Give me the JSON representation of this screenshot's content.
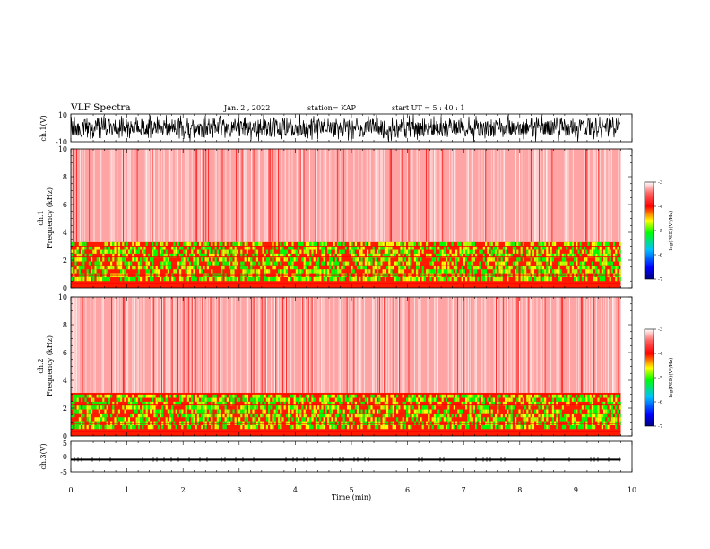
{
  "header": {
    "title": "VLF Spectra",
    "date": "Jan. 2 , 2022",
    "station": "station= KAP",
    "start": "start  UT =   5 : 40 : 1"
  },
  "chart_data": [
    {
      "type": "line",
      "panel": "ch1-waveform",
      "ylabel": "ch.1(V)",
      "ylim": [
        -10,
        10
      ],
      "yticks": [
        "10",
        "-10"
      ],
      "xlim": [
        0,
        10
      ],
      "x_extent_min": 9.8,
      "series": [
        {
          "color": "#000000"
        }
      ]
    },
    {
      "type": "heatmap",
      "panel": "ch1-spectrogram",
      "ylabel": [
        "ch.1",
        "Frequency (kHz)"
      ],
      "ylim": [
        0,
        10
      ],
      "yticks": [
        "0",
        "2",
        "4",
        "6",
        "8",
        "10"
      ],
      "xlim": [
        0,
        10
      ],
      "x_extent_min": 9.8,
      "band_top_khz": 3.3,
      "colorbar": {
        "label": "log(PSD)(V²/Hz)",
        "range": [
          -7,
          -3
        ],
        "ticks": [
          "-3",
          "-4",
          "-5",
          "-6",
          "-7"
        ],
        "colors": [
          "#ffffff",
          "#ff0000",
          "#ffff00",
          "#00ff00",
          "#00c0ff",
          "#0000ff",
          "#000080"
        ]
      }
    },
    {
      "type": "heatmap",
      "panel": "ch2-spectrogram",
      "ylabel": [
        "ch.2",
        "Frequency (kHz)"
      ],
      "ylim": [
        0,
        10
      ],
      "yticks": [
        "0",
        "2",
        "4",
        "6",
        "8",
        "10"
      ],
      "xlim": [
        0,
        10
      ],
      "x_extent_min": 9.8,
      "band_top_khz": 3.1,
      "colorbar": {
        "label": "log(PSD)(V²/Hz)",
        "range": [
          -7,
          -3
        ],
        "ticks": [
          "-3",
          "-4",
          "-5",
          "-6",
          "-7"
        ],
        "colors": [
          "#ffffff",
          "#ff0000",
          "#ffff00",
          "#00ff00",
          "#00c0ff",
          "#0000ff",
          "#000080"
        ]
      }
    },
    {
      "type": "line",
      "panel": "ch3-waveform",
      "ylabel": "ch.3(V)",
      "ylim": [
        -5,
        5
      ],
      "yticks": [
        "5",
        "0",
        "-5"
      ],
      "xlim": [
        0,
        10
      ],
      "x_extent_min": 9.8,
      "xlabel": "Time (min)",
      "xticks": [
        "0",
        "1",
        "2",
        "3",
        "4",
        "5",
        "6",
        "7",
        "8",
        "9",
        "10"
      ],
      "series": [
        {
          "values_approx": [
            -1.3,
            -0.7
          ],
          "color": "#000000"
        }
      ]
    }
  ]
}
